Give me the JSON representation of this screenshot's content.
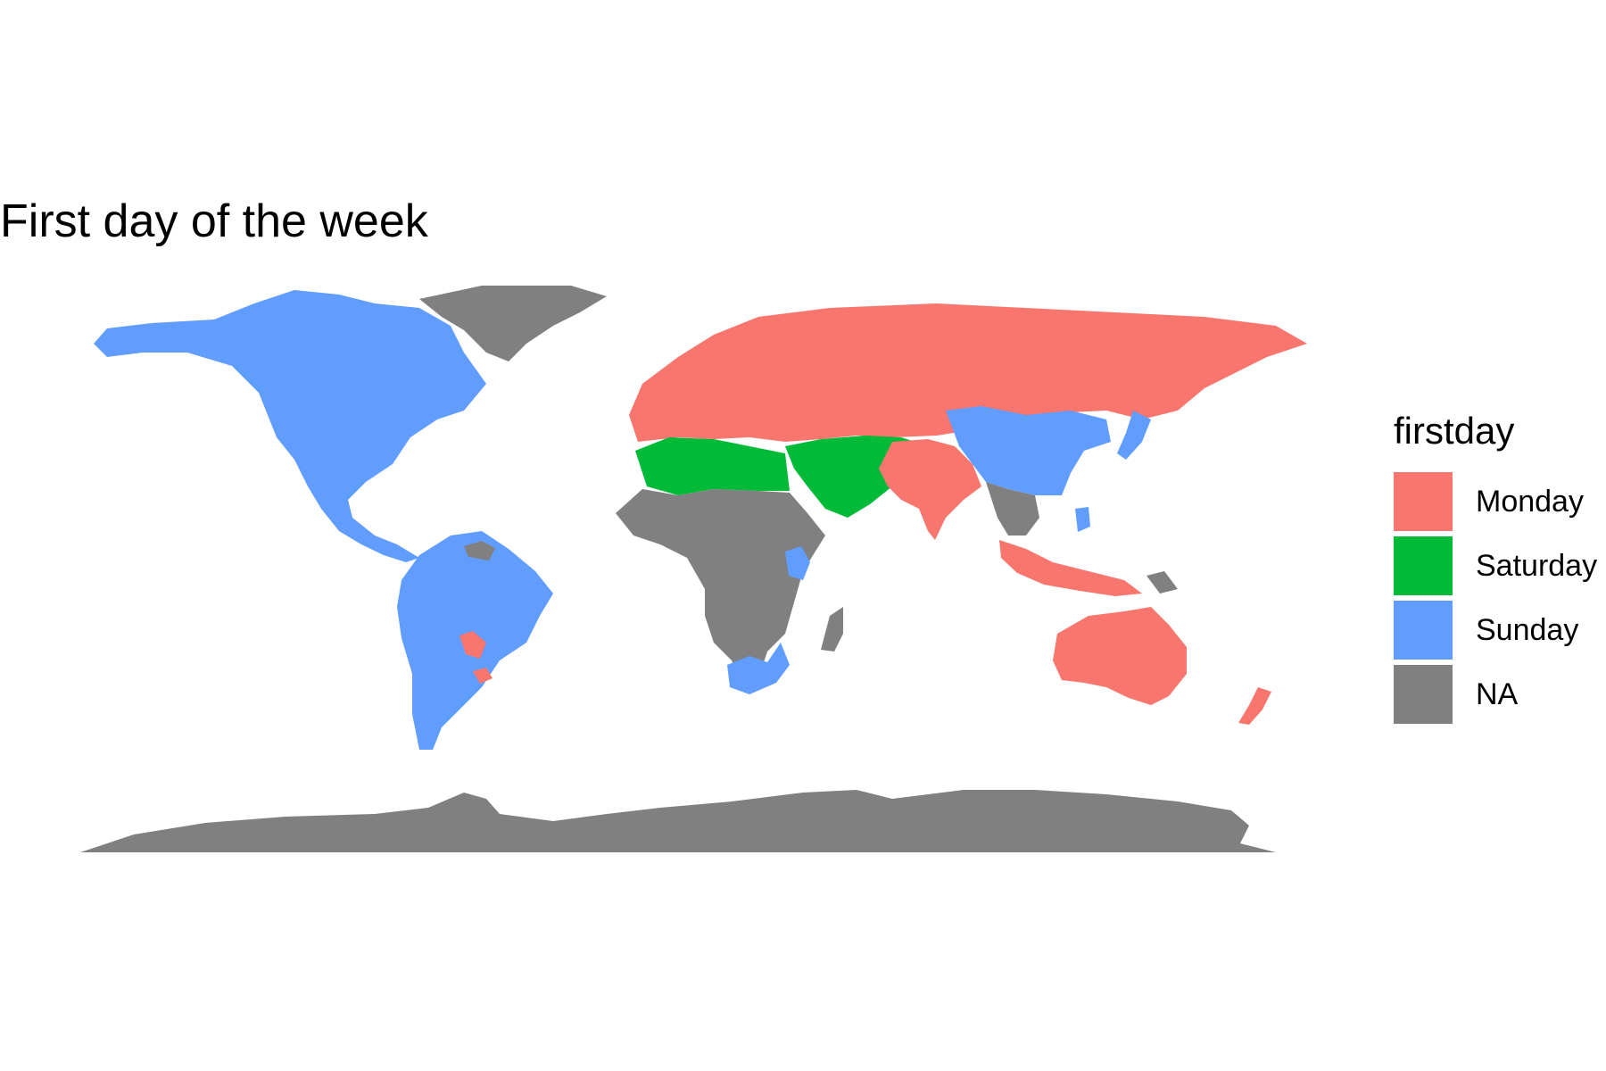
{
  "title": "First day of the week",
  "legend": {
    "title": "firstday",
    "items": [
      {
        "label": "Monday",
        "color": "#F8766D"
      },
      {
        "label": "Saturday",
        "color": "#00BA38"
      },
      {
        "label": "Sunday",
        "color": "#619CFF"
      },
      {
        "label": "NA",
        "color": "#808080"
      }
    ]
  },
  "regions": [
    {
      "name": "North America",
      "category": "Sunday"
    },
    {
      "name": "Greenland",
      "category": "NA"
    },
    {
      "name": "South America",
      "category": "Sunday"
    },
    {
      "name": "Paraguay",
      "category": "Monday"
    },
    {
      "name": "Uruguay",
      "category": "Monday"
    },
    {
      "name": "Guianas",
      "category": "NA"
    },
    {
      "name": "Europe and Russia",
      "category": "Monday"
    },
    {
      "name": "North Africa",
      "category": "Saturday"
    },
    {
      "name": "Arabian Peninsula and Middle East",
      "category": "Saturday"
    },
    {
      "name": "Sub-Saharan Africa",
      "category": "NA"
    },
    {
      "name": "Kenya",
      "category": "Sunday"
    },
    {
      "name": "Southern Africa",
      "category": "Sunday"
    },
    {
      "name": "Madagascar",
      "category": "NA"
    },
    {
      "name": "South Asia",
      "category": "Monday"
    },
    {
      "name": "China",
      "category": "Sunday"
    },
    {
      "name": "Japan and Philippines",
      "category": "Sunday"
    },
    {
      "name": "Mainland Southeast Asia",
      "category": "NA"
    },
    {
      "name": "Maritime Southeast Asia",
      "category": "Monday"
    },
    {
      "name": "Papua New Guinea",
      "category": "NA"
    },
    {
      "name": "Australia",
      "category": "Monday"
    },
    {
      "name": "New Zealand",
      "category": "Monday"
    },
    {
      "name": "Antarctica",
      "category": "NA"
    }
  ]
}
